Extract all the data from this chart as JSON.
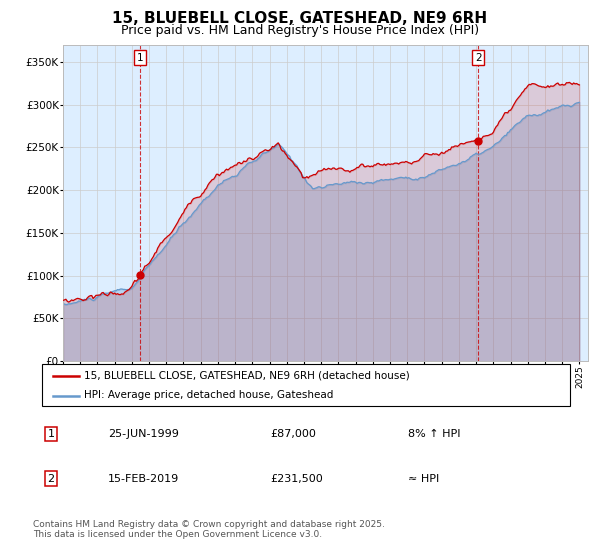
{
  "title": "15, BLUEBELL CLOSE, GATESHEAD, NE9 6RH",
  "subtitle": "Price paid vs. HM Land Registry's House Price Index (HPI)",
  "title_fontsize": 11,
  "subtitle_fontsize": 9,
  "hpi_color": "#6699cc",
  "hpi_fill_color": "#ddeeff",
  "price_color": "#cc0000",
  "vline_color": "#cc0000",
  "grid_color": "#cccccc",
  "background_color": "#ddeeff",
  "ylim": [
    0,
    370000
  ],
  "yticks": [
    0,
    50000,
    100000,
    150000,
    200000,
    250000,
    300000,
    350000
  ],
  "transaction1_year": 1999.49,
  "transaction1_price": 87000,
  "transaction2_year": 2019.12,
  "transaction2_price": 231500,
  "legend_line1": "15, BLUEBELL CLOSE, GATESHEAD, NE9 6RH (detached house)",
  "legend_line2": "HPI: Average price, detached house, Gateshead",
  "table_row1": [
    "1",
    "25-JUN-1999",
    "£87,000",
    "8% ↑ HPI"
  ],
  "table_row2": [
    "2",
    "15-FEB-2019",
    "£231,500",
    "≈ HPI"
  ],
  "footer": "Contains HM Land Registry data © Crown copyright and database right 2025.\nThis data is licensed under the Open Government Licence v3.0."
}
